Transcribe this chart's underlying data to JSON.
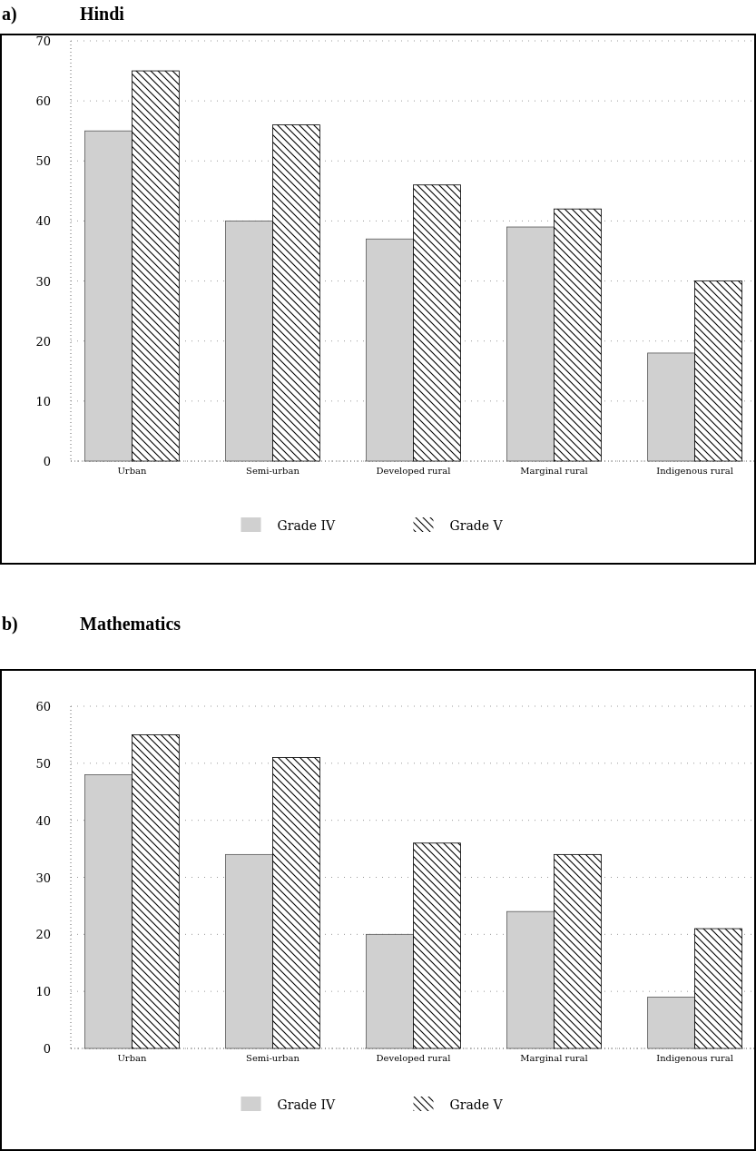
{
  "chart_data": [
    {
      "type": "bar",
      "title": "Hindi",
      "annotations": [
        "a)"
      ],
      "categories": [
        "Urban",
        "Semi-urban",
        "Developed rural",
        "Marginal rural",
        "Indigenous rural"
      ],
      "series": [
        {
          "name": "Grade IV",
          "color": "#d0d0d0",
          "values": [
            55,
            40,
            37,
            39,
            18
          ]
        },
        {
          "name": "Grade V",
          "color": "#000000",
          "values": [
            65,
            56,
            46,
            42,
            30
          ]
        }
      ],
      "ylim": [
        0,
        70
      ],
      "yticks": [
        0,
        10,
        20,
        30,
        40,
        50,
        60,
        70
      ],
      "grid": "y",
      "legend": "bottom"
    },
    {
      "type": "bar",
      "title": "Mathematics",
      "annotations": [
        "b)"
      ],
      "categories": [
        "Urban",
        "Semi-urban",
        "Developed rural",
        "Marginal rural",
        "Indigenous rural"
      ],
      "series": [
        {
          "name": "Grade IV",
          "color": "#d0d0d0",
          "values": [
            48,
            34,
            20,
            24,
            9
          ]
        },
        {
          "name": "Grade V",
          "color": "#000000",
          "values": [
            55,
            51,
            36,
            34,
            21
          ]
        }
      ],
      "ylim": [
        0,
        60
      ],
      "yticks": [
        0,
        10,
        20,
        30,
        40,
        50,
        60
      ],
      "grid": "y",
      "legend": "bottom"
    }
  ]
}
